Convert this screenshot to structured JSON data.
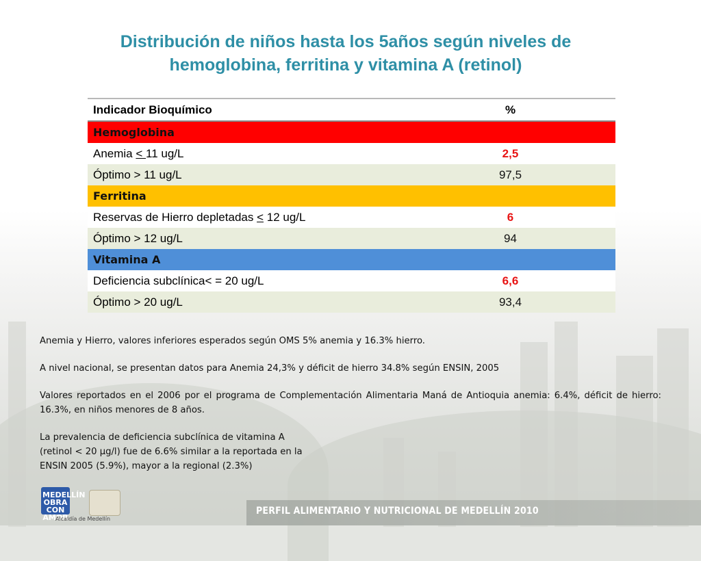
{
  "title": {
    "line1": "Distribución de niños hasta los 5años según niveles de",
    "line2": "hemoglobina, ferritina y vitamina A (retinol)"
  },
  "table": {
    "headers": {
      "indicator": "Indicador Bioquímico",
      "percent": "%"
    },
    "sections": [
      {
        "name": "Hemoglobina",
        "color": "#ff0000",
        "rows": [
          {
            "prefix": "Anemia ",
            "op": "< ",
            "suffix": "11 ug/L",
            "value": "2,5",
            "highlight": true
          },
          {
            "prefix": "Óptimo > 11 ug/L",
            "op": "",
            "suffix": "",
            "value": "97,5",
            "highlight": false
          }
        ]
      },
      {
        "name": "Ferritina",
        "color": "#ffc000",
        "rows": [
          {
            "prefix": "Reservas de Hierro depletadas ",
            "op": "<",
            "suffix": " 12 ug/L",
            "value": "6",
            "highlight": true
          },
          {
            "prefix": "Óptimo > 12 ug/L",
            "op": "",
            "suffix": "",
            "value": "94",
            "highlight": false
          }
        ]
      },
      {
        "name": "Vitamina A",
        "color": "#4f8fd8",
        "rows": [
          {
            "prefix": "Deficiencia subclínica< = 20 ug/L",
            "op": "",
            "suffix": "",
            "value": "6,6",
            "highlight": true
          },
          {
            "prefix": "Óptimo > 20 ug/L",
            "op": "",
            "suffix": "",
            "value": "93,4",
            "highlight": false
          }
        ]
      }
    ]
  },
  "notes": {
    "p1": "Anemia y Hierro, valores inferiores esperados según OMS 5% anemia  y 16.3% hierro.",
    "p2": "A nivel nacional, se presentan datos para Anemia 24,3% y déficit de hierro 34.8% según ENSIN, 2005",
    "p3": "Valores reportados en el 2006 por el programa de Complementación Alimentaria Maná de Antioquia anemia: 6.4%, déficit de hierro: 16.3%,  en niños menores de 8 años.",
    "p4_line1": "La prevalencia de deficiencia subclínica de vitamina A",
    "p4_line2": "(retinol < 20 μg/l) fue de 6.6%  similar a la reportada en la",
    "p4_line3": "ENSIN 2005 (5.9%), mayor a la regional (2.3%)"
  },
  "footer": {
    "text": "PERFIL ALIMENTARIO Y NUTRICIONAL DE MEDELLÍN 2010",
    "logo_text": "MEDELLÍN OBRA CON AMOR",
    "logo_caption": "Alcaldía de Medellín"
  },
  "colors": {
    "title": "#2e8fa6",
    "highlight_value": "#e81414",
    "tint_row": "#e9eddc"
  }
}
